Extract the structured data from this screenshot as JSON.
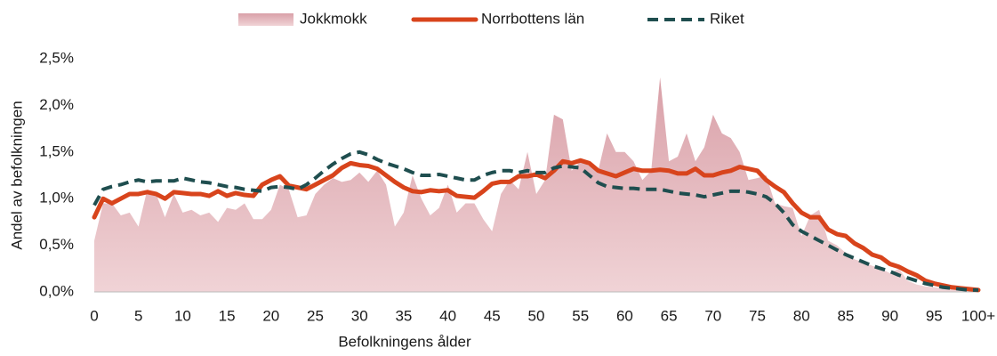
{
  "chart_data": {
    "type": "area_line",
    "x_label": "Befolkningens ålder",
    "y_label": "Andel av befolkningen",
    "legend": "top",
    "categories": [
      "0",
      null,
      null,
      null,
      null,
      "5",
      null,
      null,
      null,
      null,
      "10",
      null,
      null,
      null,
      null,
      "15",
      null,
      null,
      null,
      null,
      "20",
      null,
      null,
      null,
      null,
      "25",
      null,
      null,
      null,
      null,
      "30",
      null,
      null,
      null,
      null,
      "35",
      null,
      null,
      null,
      null,
      "40",
      null,
      null,
      null,
      null,
      "45",
      null,
      null,
      null,
      null,
      "50",
      null,
      null,
      null,
      null,
      "55",
      null,
      null,
      null,
      null,
      "60",
      null,
      null,
      null,
      null,
      "65",
      null,
      null,
      null,
      null,
      "70",
      null,
      null,
      null,
      null,
      "75",
      null,
      null,
      null,
      null,
      "80",
      null,
      null,
      null,
      null,
      "85",
      null,
      null,
      null,
      null,
      "90",
      null,
      null,
      null,
      null,
      "95",
      null,
      null,
      null,
      null,
      "100+"
    ],
    "ylim": [
      0,
      2.5
    ],
    "yticks": [
      {
        "value": 0,
        "label": "0,0%"
      },
      {
        "value": 0.5,
        "label": "0,5%"
      },
      {
        "value": 1,
        "label": "1,0%"
      },
      {
        "value": 1.5,
        "label": "1,5%"
      },
      {
        "value": 2,
        "label": "2,0%"
      },
      {
        "value": 2.5,
        "label": "2,5%"
      }
    ],
    "series": [
      {
        "name": "Jokkmokk",
        "kind": "area",
        "color": "#d9a0a8",
        "values": [
          0.55,
          0.95,
          0.95,
          0.82,
          0.85,
          0.7,
          1.1,
          1.05,
          0.8,
          1.05,
          0.85,
          0.88,
          0.82,
          0.85,
          0.75,
          0.9,
          0.88,
          0.95,
          0.78,
          0.78,
          0.88,
          1.15,
          1.1,
          0.8,
          0.82,
          1.05,
          1.15,
          1.22,
          1.18,
          1.2,
          1.28,
          1.18,
          1.3,
          1.15,
          0.7,
          0.85,
          1.25,
          1.0,
          0.82,
          0.9,
          1.15,
          0.85,
          0.95,
          0.95,
          0.78,
          0.65,
          1.05,
          1.2,
          1.1,
          1.5,
          1.05,
          1.2,
          1.9,
          1.85,
          1.3,
          1.4,
          1.35,
          1.3,
          1.7,
          1.5,
          1.5,
          1.4,
          1.2,
          1.3,
          2.3,
          1.4,
          1.45,
          1.7,
          1.4,
          1.55,
          1.9,
          1.7,
          1.65,
          1.5,
          1.2,
          1.22,
          1.25,
          0.95,
          0.92,
          0.9,
          0.6,
          0.82,
          0.88,
          0.55,
          0.5,
          0.42,
          0.35,
          0.32,
          0.28,
          0.25,
          0.2,
          0.25,
          0.12,
          0.08,
          0.06,
          0.05,
          0.04,
          0.03,
          0.02,
          0.01,
          0.01
        ]
      },
      {
        "name": "Norrbottens län",
        "kind": "line",
        "dash": false,
        "color": "#d8441c",
        "values": [
          0.8,
          1.0,
          0.95,
          1.0,
          1.05,
          1.05,
          1.07,
          1.05,
          1.0,
          1.07,
          1.06,
          1.05,
          1.05,
          1.03,
          1.08,
          1.03,
          1.06,
          1.04,
          1.03,
          1.15,
          1.2,
          1.24,
          1.14,
          1.12,
          1.1,
          1.15,
          1.2,
          1.25,
          1.33,
          1.38,
          1.36,
          1.35,
          1.32,
          1.25,
          1.18,
          1.12,
          1.08,
          1.07,
          1.09,
          1.08,
          1.09,
          1.03,
          1.02,
          1.01,
          1.08,
          1.16,
          1.18,
          1.18,
          1.24,
          1.24,
          1.26,
          1.22,
          1.3,
          1.4,
          1.38,
          1.41,
          1.38,
          1.3,
          1.27,
          1.24,
          1.28,
          1.32,
          1.3,
          1.3,
          1.31,
          1.3,
          1.27,
          1.27,
          1.32,
          1.25,
          1.25,
          1.28,
          1.3,
          1.34,
          1.32,
          1.3,
          1.2,
          1.13,
          1.07,
          0.95,
          0.85,
          0.8,
          0.8,
          0.67,
          0.62,
          0.6,
          0.52,
          0.47,
          0.4,
          0.37,
          0.3,
          0.27,
          0.22,
          0.18,
          0.12,
          0.09,
          0.07,
          0.05,
          0.04,
          0.03,
          0.02
        ]
      },
      {
        "name": "Riket",
        "kind": "line",
        "dash": true,
        "color": "#1f4e4f",
        "values": [
          0.93,
          1.1,
          1.13,
          1.15,
          1.18,
          1.2,
          1.18,
          1.19,
          1.19,
          1.19,
          1.22,
          1.2,
          1.18,
          1.17,
          1.15,
          1.13,
          1.12,
          1.1,
          1.09,
          1.08,
          1.12,
          1.13,
          1.12,
          1.1,
          1.15,
          1.22,
          1.3,
          1.37,
          1.43,
          1.48,
          1.5,
          1.47,
          1.42,
          1.38,
          1.35,
          1.32,
          1.28,
          1.25,
          1.25,
          1.26,
          1.24,
          1.22,
          1.2,
          1.2,
          1.25,
          1.28,
          1.3,
          1.3,
          1.28,
          1.3,
          1.28,
          1.28,
          1.33,
          1.35,
          1.34,
          1.33,
          1.25,
          1.17,
          1.13,
          1.12,
          1.11,
          1.11,
          1.1,
          1.1,
          1.1,
          1.08,
          1.06,
          1.05,
          1.04,
          1.02,
          1.04,
          1.06,
          1.08,
          1.08,
          1.07,
          1.05,
          1.02,
          0.95,
          0.85,
          0.72,
          0.65,
          0.6,
          0.55,
          0.5,
          0.45,
          0.4,
          0.36,
          0.32,
          0.28,
          0.25,
          0.22,
          0.18,
          0.15,
          0.12,
          0.09,
          0.07,
          0.05,
          0.04,
          0.03,
          0.02,
          0.02
        ]
      }
    ]
  }
}
